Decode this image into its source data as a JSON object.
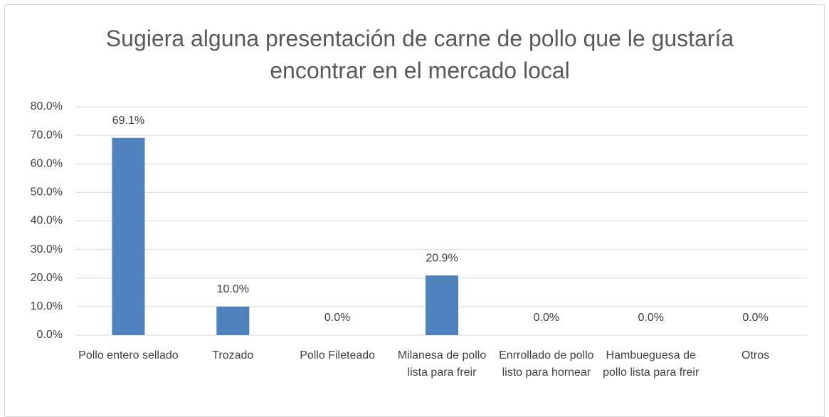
{
  "chart_data": {
    "type": "bar",
    "title": "Sugiera alguna presentación de carne de pollo que le gustaría encontrar en el mercado local",
    "categories": [
      "Pollo entero sellado",
      "Trozado",
      "Pollo Fileteado",
      "Milanesa de pollo lista para freir",
      "Enrrollado de pollo listo para hornear",
      "Hambueguesa de pollo lista para freir",
      "Otros"
    ],
    "values": [
      69.1,
      10.0,
      0.0,
      20.9,
      0.0,
      0.0,
      0.0
    ],
    "value_labels": [
      "69.1%",
      "10.0%",
      "0.0%",
      "20.9%",
      "0.0%",
      "0.0%",
      "0.0%"
    ],
    "color": "#4f81bd",
    "ylim": [
      0,
      80
    ],
    "yticks": [
      {
        "value": 0,
        "label": "0.0%"
      },
      {
        "value": 10,
        "label": "10.0%"
      },
      {
        "value": 20,
        "label": "20.0%"
      },
      {
        "value": 30,
        "label": "30.0%"
      },
      {
        "value": 40,
        "label": "40.0%"
      },
      {
        "value": 50,
        "label": "50.0%"
      },
      {
        "value": 60,
        "label": "60.0%"
      },
      {
        "value": 70,
        "label": "70.0%"
      },
      {
        "value": 80,
        "label": "80.0%"
      }
    ],
    "grid": true
  }
}
